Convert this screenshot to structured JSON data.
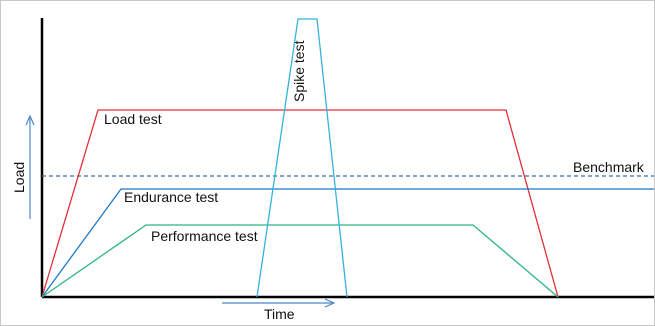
{
  "axis": {
    "x_label": "Time",
    "y_label": "Load"
  },
  "lines": {
    "load": {
      "label": "Load test",
      "color": "#e0303a"
    },
    "spike": {
      "label": "Spike test",
      "color": "#33b4dc"
    },
    "endurance": {
      "label": "Endurance test",
      "color": "#1f77c8"
    },
    "performance": {
      "label": "Performance test",
      "color": "#2eb486"
    },
    "benchmark": {
      "label": "Benchmark",
      "color": "#3a6ea5"
    }
  },
  "colors": {
    "axis": "#000000",
    "arrow": "#4a86c8"
  }
}
